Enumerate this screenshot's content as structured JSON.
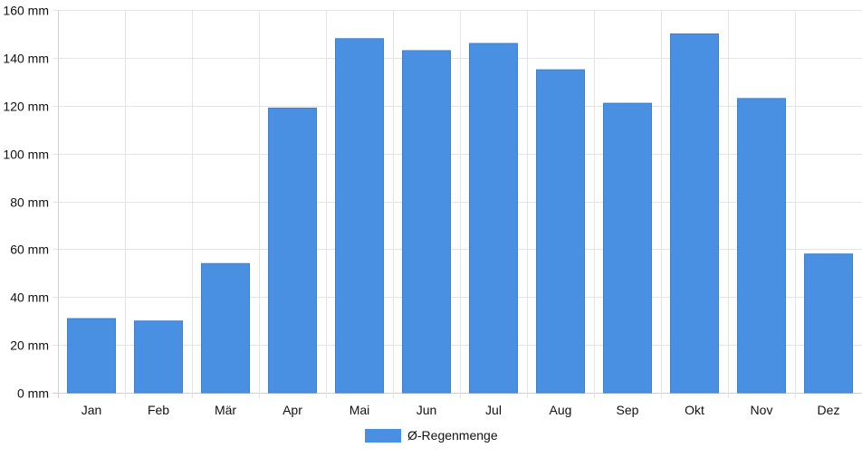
{
  "chart_data": {
    "type": "bar",
    "categories": [
      "Jan",
      "Feb",
      "Mär",
      "Apr",
      "Mai",
      "Jun",
      "Jul",
      "Aug",
      "Sep",
      "Okt",
      "Nov",
      "Dez"
    ],
    "series": [
      {
        "name": "Ø-Regenmenge",
        "values": [
          31,
          30,
          54,
          119,
          148,
          143,
          146,
          135,
          121,
          150,
          123,
          58
        ]
      }
    ],
    "ylim": [
      0,
      160
    ],
    "yticks": [
      "0 mm",
      "20 mm",
      "40 mm",
      "60 mm",
      "80 mm",
      "100 mm",
      "120 mm",
      "140 mm",
      "160 mm"
    ],
    "ytick_values": [
      0,
      20,
      40,
      60,
      80,
      100,
      120,
      140,
      160
    ],
    "grid": true,
    "legend_position": "bottom",
    "colors": {
      "bar": "#4a90e2",
      "bar_border": "#3f80cf"
    }
  }
}
